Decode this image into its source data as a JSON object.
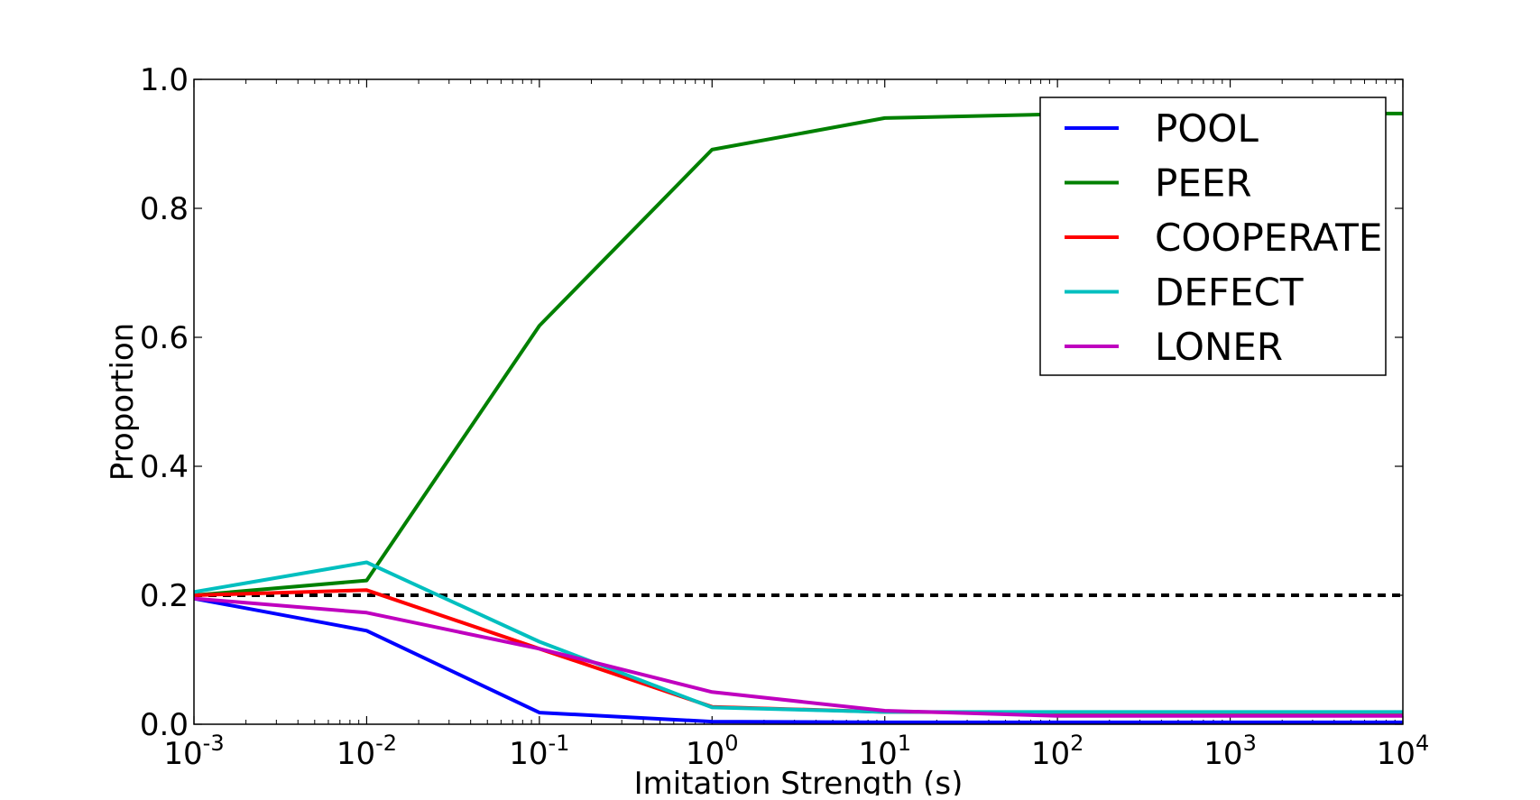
{
  "chart_data": {
    "type": "line",
    "title": "",
    "xlabel": "Imitation Strength (s)",
    "ylabel": "Proportion",
    "xscale": "log",
    "xlim": [
      0.001,
      10000
    ],
    "ylim": [
      0.0,
      1.0
    ],
    "x": [
      0.001,
      0.01,
      0.1,
      1,
      10,
      100,
      1000,
      10000
    ],
    "x_ticks": [
      {
        "value": 0.001,
        "base": "10",
        "exp": "-3"
      },
      {
        "value": 0.01,
        "base": "10",
        "exp": "-2"
      },
      {
        "value": 0.1,
        "base": "10",
        "exp": "-1"
      },
      {
        "value": 1,
        "base": "10",
        "exp": "0"
      },
      {
        "value": 10,
        "base": "10",
        "exp": "1"
      },
      {
        "value": 100,
        "base": "10",
        "exp": "2"
      },
      {
        "value": 1000,
        "base": "10",
        "exp": "3"
      },
      {
        "value": 10000,
        "base": "10",
        "exp": "4"
      }
    ],
    "y_ticks": [
      {
        "value": 0.0,
        "label": "0.0"
      },
      {
        "value": 0.2,
        "label": "0.2"
      },
      {
        "value": 0.4,
        "label": "0.4"
      },
      {
        "value": 0.6,
        "label": "0.6"
      },
      {
        "value": 0.8,
        "label": "0.8"
      },
      {
        "value": 1.0,
        "label": "1.0"
      }
    ],
    "series": [
      {
        "name": "POOL",
        "color": "#0000ff",
        "values": [
          0.195,
          0.145,
          0.018,
          0.004,
          0.003,
          0.003,
          0.003,
          0.003
        ]
      },
      {
        "name": "PEER",
        "color": "#008000",
        "values": [
          0.2,
          0.223,
          0.618,
          0.891,
          0.94,
          0.946,
          0.947,
          0.947
        ]
      },
      {
        "name": "COOPERATE",
        "color": "#ff0000",
        "values": [
          0.2,
          0.208,
          0.117,
          0.027,
          0.019,
          0.018,
          0.018,
          0.018
        ]
      },
      {
        "name": "DEFECT",
        "color": "#00bfbf",
        "values": [
          0.205,
          0.251,
          0.128,
          0.026,
          0.019,
          0.019,
          0.019,
          0.019
        ]
      },
      {
        "name": "LONER",
        "color": "#bf00bf",
        "values": [
          0.195,
          0.173,
          0.117,
          0.05,
          0.021,
          0.013,
          0.013,
          0.013
        ]
      }
    ],
    "reference_line": {
      "y": 0.2,
      "style": "dashed",
      "color": "#000000"
    },
    "legend": {
      "placement": "top-right"
    }
  }
}
